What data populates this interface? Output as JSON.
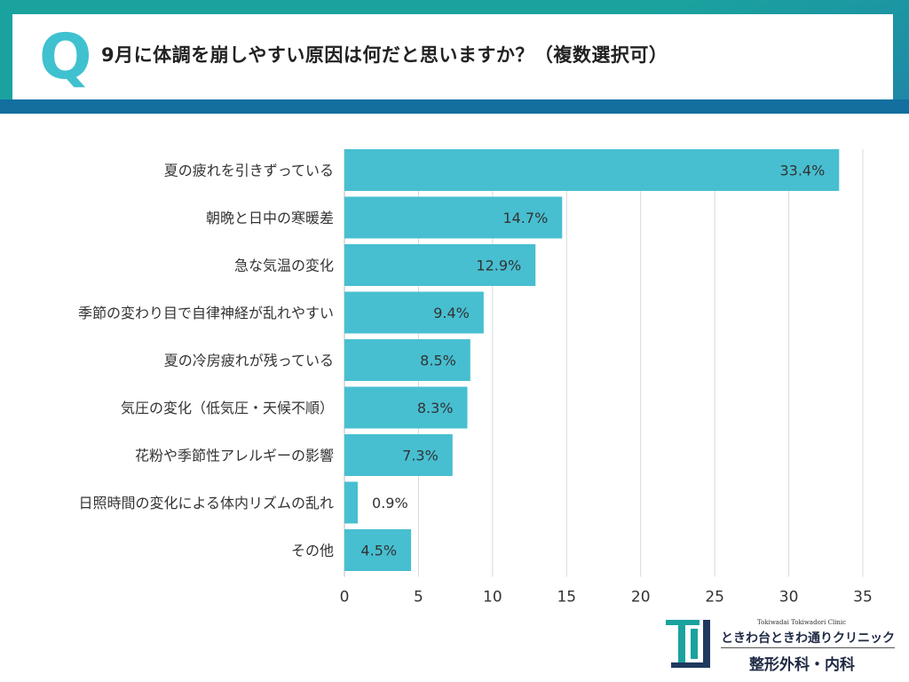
{
  "header": {
    "q_letter": "Q",
    "question": "9月に体調を崩しやすい原因は何だと思いますか？（複数選択可）"
  },
  "chart_data": {
    "type": "bar",
    "orientation": "horizontal",
    "categories": [
      "夏の疲れを引きずっている",
      "朝晩と日中の寒暖差",
      "急な気温の変化",
      "季節の変わり目で自律神経が乱れやすい",
      "夏の冷房疲れが残っている",
      "気圧の変化（低気圧・天候不順）",
      "花粉や季節性アレルギーの影響",
      "日照時間の変化による体内リズムの乱れ",
      "その他"
    ],
    "values": [
      33.4,
      14.7,
      12.9,
      9.4,
      8.5,
      8.3,
      7.3,
      0.9,
      4.5
    ],
    "value_labels": [
      "33.4%",
      "14.7%",
      "12.9%",
      "9.4%",
      "8.5%",
      "8.3%",
      "7.3%",
      "0.9%",
      "4.5%"
    ],
    "xlim": [
      0,
      35
    ],
    "xticks": [
      0,
      5,
      10,
      15,
      20,
      25,
      30,
      35
    ],
    "grid": "vertical",
    "bar_color": "#47bfd1"
  },
  "logo": {
    "subtitle": "Tokiwadai Tokiwadori Clinic",
    "name": "ときわ台ときわ通りクリニック",
    "department": "整形外科・内科",
    "mark_color": "#1aa39e",
    "mark_color_dark": "#1f3a5f"
  }
}
